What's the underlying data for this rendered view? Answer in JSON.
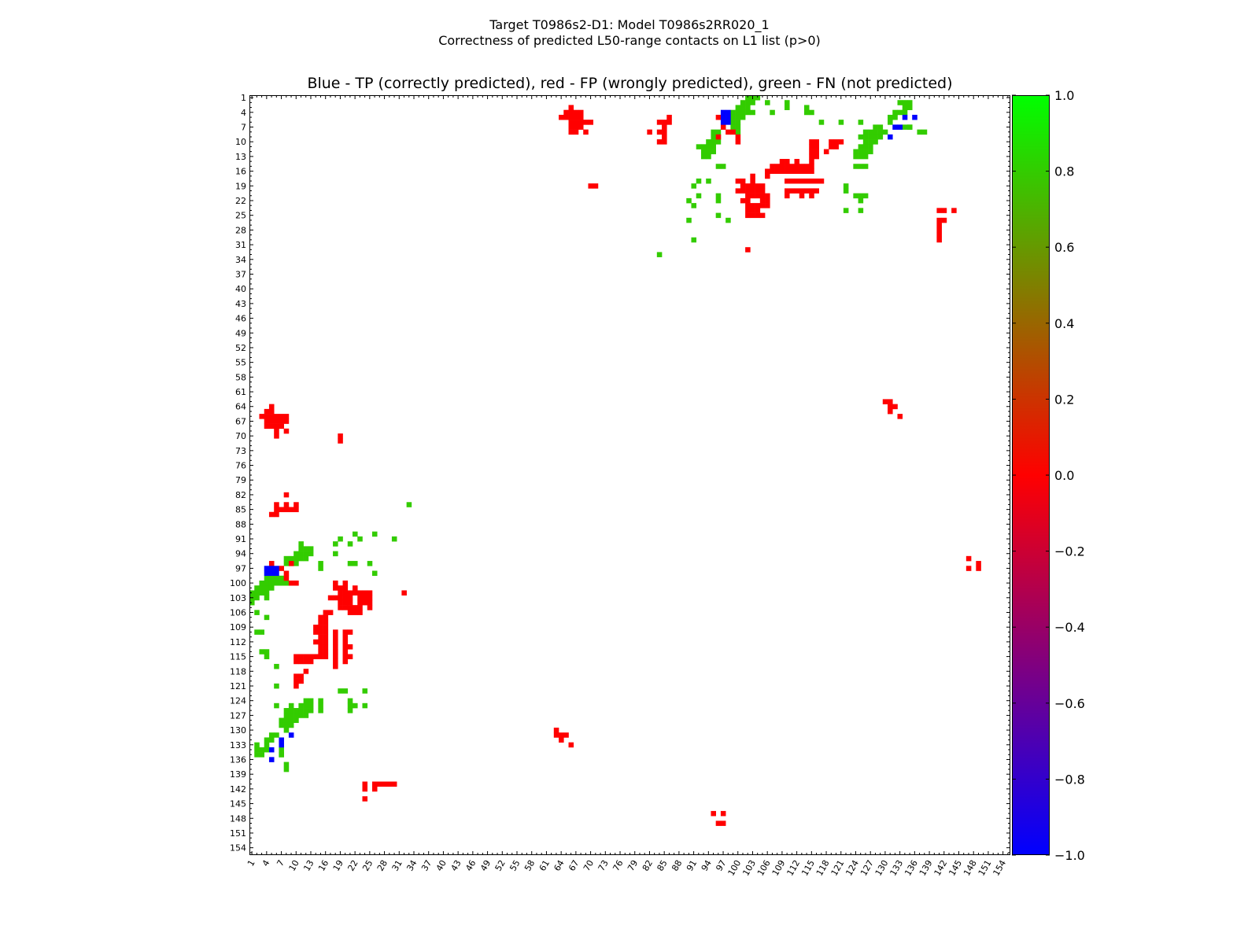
{
  "figure": {
    "title_line1": "Target T0986s2-D1: Model T0986s2RR020_1",
    "title_line2": "Correctness of predicted L50-range contacts on L1 list (p>0)",
    "subtitle": "Blue - TP (correctly predicted), red - FP (wrongly predicted), green - FN (not predicted)"
  },
  "chart_data": {
    "type": "heatmap",
    "x_range": [
      1,
      155
    ],
    "y_range": [
      1,
      155
    ],
    "y_inverted": true,
    "tick_labels": [
      "1",
      "4",
      "7",
      "10",
      "13",
      "16",
      "19",
      "22",
      "25",
      "28",
      "31",
      "34",
      "37",
      "40",
      "43",
      "46",
      "49",
      "52",
      "55",
      "58",
      "61",
      "64",
      "67",
      "70",
      "73",
      "76",
      "79",
      "82",
      "85",
      "88",
      "91",
      "94",
      "97",
      "100",
      "103",
      "106",
      "109",
      "112",
      "115",
      "118",
      "121",
      "124",
      "127",
      "130",
      "133",
      "136",
      "139",
      "142",
      "145",
      "148",
      "151",
      "154"
    ],
    "colorbar": {
      "min": -1.0,
      "max": 1.0,
      "tick_labels": [
        "1.0",
        "0.8",
        "0.6",
        "0.4",
        "0.2",
        "0.0",
        "−0.2",
        "−0.4",
        "−0.6",
        "−0.8",
        "−1.0"
      ],
      "tick_values": [
        1.0,
        0.8,
        0.6,
        0.4,
        0.2,
        0.0,
        -0.2,
        -0.4,
        -0.6,
        -0.8,
        -1.0
      ],
      "colors": [
        "#0000ff",
        "#ff0000",
        "#00ff00"
      ]
    },
    "categories": {
      "TP": {
        "value": -1.0,
        "color": "#0000ff"
      },
      "FP": {
        "value": 0.0,
        "color": "#ff0000"
      },
      "FN": {
        "value": 0.8,
        "color": "#33cc00"
      }
    },
    "tp_cells": [
      [
        4,
        97
      ],
      [
        4,
        98
      ],
      [
        5,
        97
      ],
      [
        5,
        98
      ],
      [
        6,
        97
      ],
      [
        6,
        98
      ],
      [
        5,
        134
      ],
      [
        5,
        136
      ],
      [
        7,
        132
      ],
      [
        7,
        133
      ],
      [
        9,
        131
      ]
    ],
    "fp_cells": [
      [
        3,
        66
      ],
      [
        4,
        65
      ],
      [
        4,
        66
      ],
      [
        4,
        67
      ],
      [
        4,
        68
      ],
      [
        5,
        64
      ],
      [
        5,
        65
      ],
      [
        5,
        66
      ],
      [
        5,
        67
      ],
      [
        5,
        68
      ],
      [
        6,
        66
      ],
      [
        6,
        67
      ],
      [
        6,
        68
      ],
      [
        6,
        69
      ],
      [
        6,
        70
      ],
      [
        7,
        66
      ],
      [
        7,
        67
      ],
      [
        7,
        68
      ],
      [
        8,
        66
      ],
      [
        8,
        67
      ],
      [
        8,
        69
      ],
      [
        5,
        86
      ],
      [
        6,
        84
      ],
      [
        6,
        85
      ],
      [
        6,
        86
      ],
      [
        7,
        85
      ],
      [
        8,
        82
      ],
      [
        8,
        84
      ],
      [
        8,
        85
      ],
      [
        9,
        85
      ],
      [
        10,
        84
      ],
      [
        10,
        85
      ],
      [
        5,
        96
      ],
      [
        7,
        97
      ],
      [
        8,
        98
      ],
      [
        8,
        99
      ],
      [
        9,
        96
      ],
      [
        9,
        100
      ],
      [
        10,
        100
      ],
      [
        10,
        115
      ],
      [
        10,
        116
      ],
      [
        10,
        119
      ],
      [
        10,
        120
      ],
      [
        10,
        121
      ],
      [
        11,
        115
      ],
      [
        11,
        116
      ],
      [
        11,
        119
      ],
      [
        11,
        120
      ],
      [
        12,
        115
      ],
      [
        12,
        116
      ],
      [
        12,
        118
      ],
      [
        13,
        115
      ],
      [
        13,
        116
      ],
      [
        14,
        109
      ],
      [
        14,
        110
      ],
      [
        14,
        112
      ],
      [
        14,
        115
      ],
      [
        15,
        107
      ],
      [
        15,
        108
      ],
      [
        15,
        109
      ],
      [
        15,
        110
      ],
      [
        15,
        111
      ],
      [
        15,
        112
      ],
      [
        15,
        113
      ],
      [
        15,
        114
      ],
      [
        15,
        115
      ],
      [
        16,
        106
      ],
      [
        16,
        107
      ],
      [
        16,
        108
      ],
      [
        16,
        109
      ],
      [
        16,
        110
      ],
      [
        16,
        111
      ],
      [
        16,
        112
      ],
      [
        16,
        113
      ],
      [
        16,
        114
      ],
      [
        16,
        115
      ],
      [
        17,
        103
      ],
      [
        17,
        106
      ],
      [
        18,
        100
      ],
      [
        18,
        101
      ],
      [
        18,
        103
      ],
      [
        18,
        110
      ],
      [
        18,
        111
      ],
      [
        18,
        112
      ],
      [
        18,
        113
      ],
      [
        18,
        114
      ],
      [
        18,
        115
      ],
      [
        18,
        116
      ],
      [
        18,
        117
      ],
      [
        19,
        101
      ],
      [
        19,
        102
      ],
      [
        19,
        103
      ],
      [
        19,
        104
      ],
      [
        19,
        105
      ],
      [
        20,
        100
      ],
      [
        20,
        101
      ],
      [
        20,
        102
      ],
      [
        20,
        103
      ],
      [
        20,
        104
      ],
      [
        20,
        105
      ],
      [
        20,
        110
      ],
      [
        20,
        111
      ],
      [
        20,
        112
      ],
      [
        20,
        113
      ],
      [
        20,
        114
      ],
      [
        20,
        115
      ],
      [
        20,
        116
      ],
      [
        21,
        102
      ],
      [
        21,
        103
      ],
      [
        21,
        104
      ],
      [
        21,
        105
      ],
      [
        21,
        106
      ],
      [
        21,
        110
      ],
      [
        21,
        113
      ],
      [
        21,
        115
      ],
      [
        22,
        101
      ],
      [
        22,
        102
      ],
      [
        22,
        105
      ],
      [
        22,
        106
      ],
      [
        23,
        102
      ],
      [
        23,
        103
      ],
      [
        23,
        104
      ],
      [
        23,
        105
      ],
      [
        23,
        106
      ],
      [
        24,
        102
      ],
      [
        24,
        103
      ],
      [
        24,
        104
      ],
      [
        25,
        102
      ],
      [
        25,
        103
      ],
      [
        25,
        104
      ],
      [
        25,
        105
      ],
      [
        19,
        70
      ],
      [
        19,
        71
      ],
      [
        32,
        102
      ],
      [
        24,
        141
      ],
      [
        24,
        142
      ],
      [
        24,
        144
      ],
      [
        26,
        141
      ],
      [
        26,
        142
      ],
      [
        27,
        141
      ],
      [
        28,
        141
      ],
      [
        29,
        141
      ],
      [
        30,
        141
      ],
      [
        64,
        131
      ],
      [
        64,
        132
      ],
      [
        66,
        133
      ],
      [
        96,
        149
      ],
      [
        97,
        149
      ],
      [
        130,
        63
      ],
      [
        131,
        63
      ],
      [
        131,
        65
      ],
      [
        147,
        95
      ],
      [
        147,
        97
      ]
    ],
    "fn_cells": [
      [
        1,
        102
      ],
      [
        1,
        103
      ],
      [
        1,
        104
      ],
      [
        2,
        101
      ],
      [
        2,
        102
      ],
      [
        2,
        103
      ],
      [
        2,
        106
      ],
      [
        2,
        110
      ],
      [
        3,
        100
      ],
      [
        3,
        101
      ],
      [
        3,
        102
      ],
      [
        3,
        110
      ],
      [
        3,
        114
      ],
      [
        4,
        99
      ],
      [
        4,
        100
      ],
      [
        4,
        101
      ],
      [
        4,
        102
      ],
      [
        4,
        103
      ],
      [
        4,
        107
      ],
      [
        4,
        114
      ],
      [
        4,
        115
      ],
      [
        5,
        99
      ],
      [
        5,
        100
      ],
      [
        5,
        101
      ],
      [
        6,
        99
      ],
      [
        6,
        100
      ],
      [
        6,
        117
      ],
      [
        6,
        121
      ],
      [
        6,
        125
      ],
      [
        7,
        99
      ],
      [
        7,
        100
      ],
      [
        7,
        135
      ],
      [
        8,
        95
      ],
      [
        8,
        96
      ],
      [
        8,
        100
      ],
      [
        9,
        95
      ],
      [
        9,
        96
      ],
      [
        9,
        125
      ],
      [
        10,
        94
      ],
      [
        10,
        95
      ],
      [
        10,
        96
      ],
      [
        11,
        92
      ],
      [
        11,
        93
      ],
      [
        11,
        94
      ],
      [
        11,
        95
      ],
      [
        12,
        93
      ],
      [
        12,
        94
      ],
      [
        12,
        95
      ],
      [
        13,
        93
      ],
      [
        13,
        94
      ],
      [
        2,
        133
      ],
      [
        2,
        134
      ],
      [
        2,
        135
      ],
      [
        3,
        134
      ],
      [
        3,
        135
      ],
      [
        4,
        132
      ],
      [
        4,
        133
      ],
      [
        4,
        134
      ],
      [
        5,
        131
      ],
      [
        5,
        132
      ],
      [
        6,
        131
      ],
      [
        7,
        128
      ],
      [
        7,
        129
      ],
      [
        7,
        134
      ],
      [
        7,
        135
      ],
      [
        8,
        126
      ],
      [
        8,
        127
      ],
      [
        8,
        128
      ],
      [
        8,
        129
      ],
      [
        8,
        130
      ],
      [
        8,
        137
      ],
      [
        8,
        138
      ],
      [
        9,
        126
      ],
      [
        9,
        127
      ],
      [
        9,
        128
      ],
      [
        9,
        129
      ],
      [
        10,
        126
      ],
      [
        10,
        127
      ],
      [
        10,
        128
      ],
      [
        11,
        125
      ],
      [
        11,
        126
      ],
      [
        11,
        127
      ],
      [
        12,
        124
      ],
      [
        12,
        125
      ],
      [
        12,
        126
      ],
      [
        12,
        127
      ],
      [
        13,
        124
      ],
      [
        13,
        125
      ],
      [
        13,
        126
      ],
      [
        15,
        96
      ],
      [
        15,
        97
      ],
      [
        18,
        92
      ],
      [
        18,
        94
      ],
      [
        19,
        91
      ],
      [
        21,
        92
      ],
      [
        22,
        90
      ],
      [
        23,
        91
      ],
      [
        26,
        90
      ],
      [
        30,
        91
      ],
      [
        33,
        84
      ],
      [
        21,
        96
      ],
      [
        22,
        96
      ],
      [
        25,
        96
      ],
      [
        26,
        98
      ],
      [
        19,
        122
      ],
      [
        20,
        122
      ],
      [
        21,
        124
      ],
      [
        21,
        125
      ],
      [
        21,
        126
      ],
      [
        22,
        125
      ],
      [
        24,
        122
      ],
      [
        24,
        125
      ],
      [
        15,
        124
      ],
      [
        15,
        125
      ],
      [
        15,
        126
      ]
    ]
  }
}
